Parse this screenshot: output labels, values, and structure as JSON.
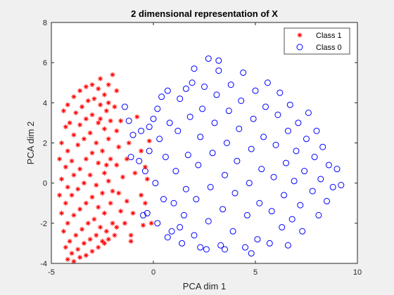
{
  "chart_data": {
    "type": "scatter",
    "title": "2 dimensional representation of X",
    "xlabel": "PCA dim 1",
    "ylabel": "PCA dim 2",
    "xlim": [
      -5,
      10
    ],
    "ylim": [
      -4,
      8
    ],
    "xticks": [
      -5,
      0,
      5,
      10
    ],
    "yticks": [
      -4,
      -2,
      0,
      2,
      4,
      6,
      8
    ],
    "xtick_labels": [
      "-5",
      "0",
      "5",
      "10"
    ],
    "ytick_labels": [
      "-4",
      "-2",
      "0",
      "2",
      "4",
      "6",
      "8"
    ],
    "grid": false,
    "legend_position": "top-right",
    "series": [
      {
        "name": "Class 1",
        "marker": "asterisk",
        "color": "#ff0000",
        "points": [
          [
            -4.4,
            3.6
          ],
          [
            -4.3,
            2.8
          ],
          [
            -4.5,
            2.0
          ],
          [
            -4.6,
            1.2
          ],
          [
            -4.5,
            0.2
          ],
          [
            -4.6,
            -0.6
          ],
          [
            -4.5,
            -1.5
          ],
          [
            -4.4,
            -2.4
          ],
          [
            -4.3,
            -3.2
          ],
          [
            -4.2,
            -3.8
          ],
          [
            -4.2,
            3.9
          ],
          [
            -4.1,
            3.0
          ],
          [
            -4.2,
            1.6
          ],
          [
            -4.3,
            0.8
          ],
          [
            -4.2,
            -0.2
          ],
          [
            -4.3,
            -1.0
          ],
          [
            -4.2,
            -2.0
          ],
          [
            -4.1,
            -2.9
          ],
          [
            -4.0,
            -3.5
          ],
          [
            -3.9,
            -3.9
          ],
          [
            -3.9,
            4.3
          ],
          [
            -3.8,
            3.5
          ],
          [
            -3.9,
            2.4
          ],
          [
            -4.0,
            1.1
          ],
          [
            -3.9,
            0.4
          ],
          [
            -4.0,
            -0.6
          ],
          [
            -3.9,
            -1.6
          ],
          [
            -3.8,
            -2.6
          ],
          [
            -3.7,
            -3.3
          ],
          [
            -3.6,
            -3.7
          ],
          [
            -3.6,
            4.6
          ],
          [
            -3.5,
            3.8
          ],
          [
            -3.6,
            2.9
          ],
          [
            -3.7,
            1.9
          ],
          [
            -3.6,
            0.7
          ],
          [
            -3.7,
            -0.3
          ],
          [
            -3.6,
            -1.3
          ],
          [
            -3.5,
            -2.3
          ],
          [
            -3.4,
            -3.0
          ],
          [
            -3.3,
            -3.6
          ],
          [
            -3.3,
            4.8
          ],
          [
            -3.2,
            4.1
          ],
          [
            -3.3,
            3.2
          ],
          [
            -3.4,
            2.2
          ],
          [
            -3.3,
            1.2
          ],
          [
            -3.4,
            0.0
          ],
          [
            -3.3,
            -1.0
          ],
          [
            -3.2,
            -2.0
          ],
          [
            -3.1,
            -2.8
          ],
          [
            -3.0,
            -3.4
          ],
          [
            -3.0,
            4.9
          ],
          [
            -2.9,
            4.2
          ],
          [
            -3.0,
            3.4
          ],
          [
            -3.1,
            2.5
          ],
          [
            -3.0,
            1.5
          ],
          [
            -3.1,
            0.4
          ],
          [
            -3.0,
            -0.7
          ],
          [
            -2.9,
            -1.8
          ],
          [
            -2.8,
            -2.6
          ],
          [
            -2.7,
            -3.2
          ],
          [
            -2.7,
            4.7
          ],
          [
            -2.6,
            3.9
          ],
          [
            -2.7,
            3.0
          ],
          [
            -2.8,
            2.0
          ],
          [
            -2.7,
            1.0
          ],
          [
            -2.8,
            -0.1
          ],
          [
            -2.7,
            -1.2
          ],
          [
            -2.6,
            -2.2
          ],
          [
            -2.5,
            -2.9
          ],
          [
            -2.4,
            -3.0
          ],
          [
            -2.4,
            4.4
          ],
          [
            -2.3,
            3.6
          ],
          [
            -2.4,
            2.7
          ],
          [
            -2.5,
            1.6
          ],
          [
            -2.4,
            0.5
          ],
          [
            -2.5,
            -0.5
          ],
          [
            -2.4,
            -1.5
          ],
          [
            -2.3,
            -2.4
          ],
          [
            -2.2,
            -2.8
          ],
          [
            -2.6,
            3.2
          ],
          [
            -2.2,
            4.0
          ],
          [
            -2.1,
            3.1
          ],
          [
            -2.2,
            2.2
          ],
          [
            -2.1,
            1.2
          ],
          [
            -2.2,
            0.1
          ],
          [
            -2.1,
            -1.0
          ],
          [
            -2.0,
            -2.0
          ],
          [
            -1.9,
            -2.6
          ],
          [
            -2.0,
            -0.4
          ],
          [
            -2.3,
            0.9
          ],
          [
            -2.0,
            5.4
          ],
          [
            -2.6,
            5.2
          ],
          [
            -2.2,
            4.9
          ],
          [
            -1.8,
            4.6
          ],
          [
            -1.9,
            3.8
          ],
          [
            -1.6,
            3.1
          ],
          [
            -1.8,
            2.6
          ],
          [
            -1.7,
            1.8
          ],
          [
            -1.8,
            0.9
          ],
          [
            -1.5,
            0.3
          ],
          [
            -1.7,
            -0.5
          ],
          [
            -1.6,
            -1.4
          ],
          [
            -1.8,
            -2.2
          ],
          [
            -1.4,
            -2.0
          ],
          [
            -1.3,
            -0.9
          ],
          [
            -1.2,
            2.0
          ],
          [
            -1.3,
            1.2
          ],
          [
            -1.0,
            -1.5
          ],
          [
            -0.9,
            0.5
          ],
          [
            -1.1,
            -2.6
          ],
          [
            -0.6,
            -0.6
          ],
          [
            -0.4,
            -1.0
          ],
          [
            -0.5,
            -2.1
          ],
          [
            -0.8,
            3.3
          ],
          [
            -0.2,
            2.1
          ],
          [
            -0.1,
            -2.0
          ],
          [
            -0.4,
            0.8
          ],
          [
            -1.1,
            -2.9
          ],
          [
            -0.6,
            1.6
          ],
          [
            -0.3,
            0.2
          ]
        ]
      },
      {
        "name": "Class 0",
        "marker": "circle",
        "color": "#0000ff",
        "points": [
          [
            -1.4,
            3.8
          ],
          [
            -1.2,
            3.1
          ],
          [
            -1.0,
            2.4
          ],
          [
            -0.7,
            1.1
          ],
          [
            -0.6,
            2.6
          ],
          [
            -0.3,
            -1.5
          ],
          [
            -0.2,
            1.6
          ],
          [
            0.0,
            3.2
          ],
          [
            0.1,
            0.0
          ],
          [
            0.2,
            -2.0
          ],
          [
            0.3,
            2.2
          ],
          [
            0.4,
            4.3
          ],
          [
            0.5,
            -0.8
          ],
          [
            0.6,
            1.3
          ],
          [
            0.8,
            3.0
          ],
          [
            0.9,
            -2.4
          ],
          [
            1.0,
            -1.0
          ],
          [
            1.1,
            0.6
          ],
          [
            1.2,
            2.6
          ],
          [
            1.3,
            4.2
          ],
          [
            1.4,
            -3.0
          ],
          [
            1.5,
            -1.6
          ],
          [
            1.6,
            -0.3
          ],
          [
            1.7,
            1.4
          ],
          [
            1.8,
            3.3
          ],
          [
            1.9,
            5.0
          ],
          [
            2.0,
            -2.6
          ],
          [
            2.1,
            -0.8
          ],
          [
            2.2,
            0.9
          ],
          [
            2.3,
            2.3
          ],
          [
            2.4,
            3.7
          ],
          [
            2.5,
            4.8
          ],
          [
            2.6,
            -3.3
          ],
          [
            2.7,
            -1.9
          ],
          [
            2.8,
            -0.2
          ],
          [
            2.9,
            1.5
          ],
          [
            3.0,
            3.0
          ],
          [
            3.1,
            4.4
          ],
          [
            3.2,
            5.6
          ],
          [
            3.3,
            -3.1
          ],
          [
            3.4,
            -1.3
          ],
          [
            3.5,
            0.4
          ],
          [
            3.6,
            2.0
          ],
          [
            3.7,
            3.6
          ],
          [
            3.8,
            4.9
          ],
          [
            3.9,
            -2.4
          ],
          [
            4.0,
            -0.5
          ],
          [
            4.1,
            1.1
          ],
          [
            4.2,
            2.7
          ],
          [
            4.3,
            4.1
          ],
          [
            4.4,
            5.5
          ],
          [
            4.5,
            -3.2
          ],
          [
            4.6,
            -1.6
          ],
          [
            4.7,
            0.0
          ],
          [
            4.8,
            1.7
          ],
          [
            4.9,
            3.2
          ],
          [
            5.0,
            4.6
          ],
          [
            5.1,
            -2.8
          ],
          [
            5.2,
            -1.0
          ],
          [
            5.3,
            0.7
          ],
          [
            5.4,
            2.3
          ],
          [
            5.5,
            3.8
          ],
          [
            5.6,
            5.0
          ],
          [
            5.7,
            -3.0
          ],
          [
            5.8,
            -1.4
          ],
          [
            5.9,
            0.3
          ],
          [
            6.0,
            1.9
          ],
          [
            6.1,
            3.4
          ],
          [
            6.2,
            4.5
          ],
          [
            6.3,
            -2.2
          ],
          [
            6.4,
            -0.6
          ],
          [
            6.5,
            1.0
          ],
          [
            6.6,
            2.6
          ],
          [
            6.7,
            3.9
          ],
          [
            6.8,
            -1.8
          ],
          [
            6.9,
            0.1
          ],
          [
            7.0,
            1.6
          ],
          [
            7.1,
            3.0
          ],
          [
            7.2,
            -1.1
          ],
          [
            7.4,
            0.6
          ],
          [
            7.5,
            2.2
          ],
          [
            7.6,
            3.5
          ],
          [
            7.8,
            -0.4
          ],
          [
            7.9,
            1.3
          ],
          [
            8.0,
            2.6
          ],
          [
            8.2,
            0.2
          ],
          [
            8.3,
            1.8
          ],
          [
            8.5,
            -0.9
          ],
          [
            8.6,
            0.9
          ],
          [
            8.8,
            -0.2
          ],
          [
            9.0,
            0.7
          ],
          [
            9.2,
            -0.1
          ],
          [
            8.1,
            -1.6
          ],
          [
            7.3,
            -2.4
          ],
          [
            6.6,
            -3.1
          ],
          [
            4.8,
            -3.5
          ],
          [
            3.5,
            -3.3
          ],
          [
            2.3,
            -3.2
          ],
          [
            1.3,
            -2.2
          ],
          [
            0.7,
            -2.7
          ],
          [
            2.7,
            6.2
          ],
          [
            3.2,
            6.1
          ],
          [
            2.0,
            5.7
          ],
          [
            1.6,
            4.7
          ],
          [
            0.7,
            4.6
          ],
          [
            0.2,
            3.7
          ],
          [
            -0.2,
            2.8
          ],
          [
            -0.4,
            0.6
          ],
          [
            -0.5,
            -1.6
          ],
          [
            -1.1,
            1.3
          ]
        ]
      }
    ]
  }
}
